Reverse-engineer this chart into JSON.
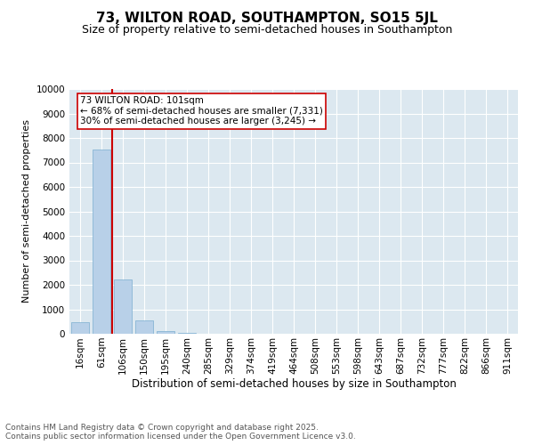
{
  "title": "73, WILTON ROAD, SOUTHAMPTON, SO15 5JL",
  "subtitle": "Size of property relative to semi-detached houses in Southampton",
  "xlabel": "Distribution of semi-detached houses by size in Southampton",
  "ylabel": "Number of semi-detached properties",
  "bar_categories": [
    "16sqm",
    "61sqm",
    "106sqm",
    "150sqm",
    "195sqm",
    "240sqm",
    "285sqm",
    "329sqm",
    "374sqm",
    "419sqm",
    "464sqm",
    "508sqm",
    "553sqm",
    "598sqm",
    "643sqm",
    "687sqm",
    "732sqm",
    "777sqm",
    "822sqm",
    "866sqm",
    "911sqm"
  ],
  "bar_values": [
    490,
    7520,
    2230,
    550,
    100,
    30,
    8,
    4,
    2,
    1,
    1,
    0,
    0,
    0,
    0,
    0,
    0,
    0,
    0,
    0,
    0
  ],
  "bar_color": "#b8d0e8",
  "bar_edge_color": "#7aaed0",
  "property_line_color": "#cc0000",
  "annotation_text": "73 WILTON ROAD: 101sqm\n← 68% of semi-detached houses are smaller (7,331)\n30% of semi-detached houses are larger (3,245) →",
  "annotation_box_color": "#ffffff",
  "annotation_box_edge_color": "#cc0000",
  "annotation_fontsize": 7.5,
  "ylim": [
    0,
    10000
  ],
  "yticks": [
    0,
    1000,
    2000,
    3000,
    4000,
    5000,
    6000,
    7000,
    8000,
    9000,
    10000
  ],
  "background_color": "#dce8f0",
  "footer_text": "Contains HM Land Registry data © Crown copyright and database right 2025.\nContains public sector information licensed under the Open Government Licence v3.0.",
  "title_fontsize": 11,
  "subtitle_fontsize": 9,
  "ylabel_fontsize": 8,
  "xlabel_fontsize": 8.5,
  "tick_fontsize": 7.5
}
